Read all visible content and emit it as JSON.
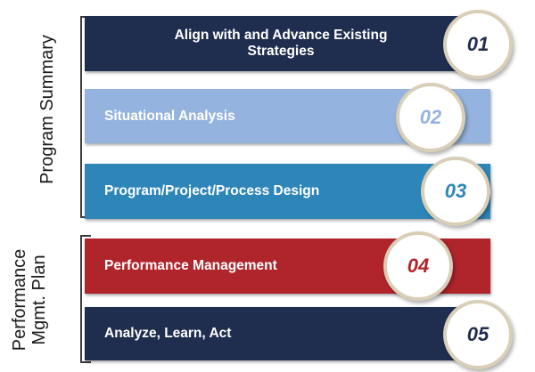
{
  "groups": [
    {
      "label": "Program Summary"
    },
    {
      "label": "Performance\nMgmt. Plan"
    }
  ],
  "stages": [
    {
      "text": "Align with and Advance Existing\nStrategies",
      "number": "01",
      "bar_color": "#1f2d4e",
      "text_color": "#ffffff",
      "number_color": "#1f2d4e"
    },
    {
      "text": "Situational Analysis",
      "number": "02",
      "bar_color": "#94b3de",
      "text_color": "#ffffff",
      "number_color": "#94b3de"
    },
    {
      "text": "Program/Project/Process Design",
      "number": "03",
      "bar_color": "#2e86b8",
      "text_color": "#ffffff",
      "number_color": "#2e86b8"
    },
    {
      "text": "Performance Management",
      "number": "04",
      "bar_color": "#b0252b",
      "text_color": "#ffffff",
      "number_color": "#b0252b"
    },
    {
      "text": "Analyze, Learn, Act",
      "number": "05",
      "bar_color": "#1f2d4e",
      "text_color": "#ffffff",
      "number_color": "#1f2d4e"
    }
  ]
}
